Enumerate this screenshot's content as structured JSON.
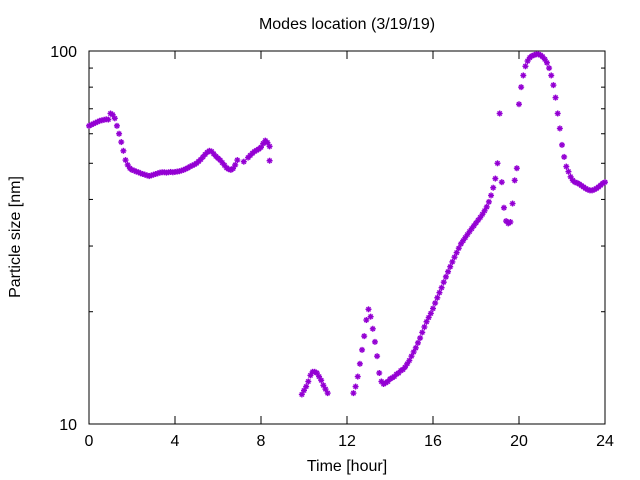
{
  "chart_data": {
    "type": "scatter",
    "title": "Modes location (3/19/19)",
    "xlabel": "Time [hour]",
    "ylabel": "Particle size [nm]",
    "xlim": [
      0,
      24
    ],
    "ylim": [
      10,
      100
    ],
    "yscale": "log",
    "xticks": [
      "0",
      "4",
      "8",
      "12",
      "16",
      "20",
      "24"
    ],
    "yticks": [
      "10",
      "100"
    ],
    "marker_color": "#9400d3",
    "marker": "star",
    "series": [
      {
        "values": [
          [
            0.0,
            63.0
          ],
          [
            0.1,
            63.4
          ],
          [
            0.2,
            63.8
          ],
          [
            0.3,
            64.2
          ],
          [
            0.4,
            64.6
          ],
          [
            0.5,
            65.0
          ],
          [
            0.6,
            65.2
          ],
          [
            0.7,
            65.4
          ],
          [
            0.8,
            65.6
          ],
          [
            0.9,
            65.5
          ],
          [
            1.0,
            68.0
          ],
          [
            1.1,
            67.5
          ],
          [
            1.2,
            66.0
          ],
          [
            1.3,
            63.0
          ],
          [
            1.4,
            60.0
          ],
          [
            1.5,
            57.0
          ],
          [
            1.6,
            54.0
          ],
          [
            1.7,
            51.0
          ],
          [
            1.8,
            49.5
          ],
          [
            1.9,
            48.5
          ],
          [
            2.0,
            48.0
          ],
          [
            2.1,
            47.8
          ],
          [
            2.2,
            47.5
          ],
          [
            2.3,
            47.3
          ],
          [
            2.4,
            47.0
          ],
          [
            2.5,
            46.8
          ],
          [
            2.6,
            46.6
          ],
          [
            2.7,
            46.4
          ],
          [
            2.8,
            46.2
          ],
          [
            2.9,
            46.4
          ],
          [
            3.0,
            46.6
          ],
          [
            3.1,
            46.8
          ],
          [
            3.2,
            47.0
          ],
          [
            3.3,
            47.2
          ],
          [
            3.4,
            47.3
          ],
          [
            3.5,
            47.3
          ],
          [
            3.6,
            47.2
          ],
          [
            3.7,
            47.3
          ],
          [
            3.8,
            47.4
          ],
          [
            3.9,
            47.3
          ],
          [
            4.0,
            47.4
          ],
          [
            4.1,
            47.5
          ],
          [
            4.2,
            47.6
          ],
          [
            4.3,
            47.8
          ],
          [
            4.4,
            48.0
          ],
          [
            4.5,
            48.3
          ],
          [
            4.6,
            48.6
          ],
          [
            4.7,
            49.0
          ],
          [
            4.8,
            49.3
          ],
          [
            4.9,
            49.6
          ],
          [
            5.0,
            50.0
          ],
          [
            5.1,
            50.6
          ],
          [
            5.2,
            51.2
          ],
          [
            5.3,
            52.0
          ],
          [
            5.4,
            52.8
          ],
          [
            5.5,
            53.5
          ],
          [
            5.6,
            54.0
          ],
          [
            5.7,
            53.8
          ],
          [
            5.8,
            53.0
          ],
          [
            5.9,
            52.2
          ],
          [
            6.0,
            51.6
          ],
          [
            6.1,
            51.0
          ],
          [
            6.2,
            50.2
          ],
          [
            6.3,
            49.4
          ],
          [
            6.4,
            48.6
          ],
          [
            6.5,
            48.2
          ],
          [
            6.6,
            48.0
          ],
          [
            6.7,
            48.4
          ],
          [
            6.8,
            49.5
          ],
          [
            6.9,
            51.0
          ],
          [
            7.2,
            50.5
          ],
          [
            7.4,
            51.8
          ],
          [
            7.5,
            52.5
          ],
          [
            7.6,
            53.2
          ],
          [
            7.7,
            53.8
          ],
          [
            7.8,
            54.2
          ],
          [
            7.9,
            54.6
          ],
          [
            8.0,
            55.2
          ],
          [
            8.1,
            56.5
          ],
          [
            8.2,
            57.5
          ],
          [
            8.3,
            56.8
          ],
          [
            8.4,
            55.5
          ],
          [
            8.4,
            50.8
          ],
          [
            9.9,
            12.0
          ],
          [
            10.0,
            12.3
          ],
          [
            10.1,
            12.6
          ],
          [
            10.2,
            13.0
          ],
          [
            10.3,
            13.5
          ],
          [
            10.4,
            13.8
          ],
          [
            10.5,
            13.8
          ],
          [
            10.6,
            13.7
          ],
          [
            10.7,
            13.4
          ],
          [
            10.8,
            13.1
          ],
          [
            10.9,
            12.7
          ],
          [
            11.0,
            12.4
          ],
          [
            11.1,
            12.1
          ],
          [
            12.3,
            12.1
          ],
          [
            12.4,
            12.6
          ],
          [
            12.5,
            13.4
          ],
          [
            12.6,
            14.5
          ],
          [
            12.7,
            15.8
          ],
          [
            12.8,
            17.2
          ],
          [
            12.9,
            19.0
          ],
          [
            13.0,
            20.3
          ],
          [
            13.1,
            19.4
          ],
          [
            13.2,
            18.0
          ],
          [
            13.3,
            16.6
          ],
          [
            13.4,
            15.2
          ],
          [
            13.5,
            13.7
          ],
          [
            13.6,
            13.0
          ],
          [
            13.7,
            12.8
          ],
          [
            13.8,
            12.9
          ],
          [
            13.9,
            13.0
          ],
          [
            14.0,
            13.2
          ],
          [
            14.1,
            13.3
          ],
          [
            14.2,
            13.4
          ],
          [
            14.3,
            13.6
          ],
          [
            14.4,
            13.7
          ],
          [
            14.5,
            13.9
          ],
          [
            14.6,
            14.0
          ],
          [
            14.7,
            14.2
          ],
          [
            14.8,
            14.5
          ],
          [
            14.9,
            14.8
          ],
          [
            15.0,
            15.2
          ],
          [
            15.1,
            15.6
          ],
          [
            15.2,
            16.0
          ],
          [
            15.3,
            16.5
          ],
          [
            15.4,
            17.0
          ],
          [
            15.5,
            17.6
          ],
          [
            15.6,
            18.2
          ],
          [
            15.7,
            18.8
          ],
          [
            15.8,
            19.3
          ],
          [
            15.9,
            19.8
          ],
          [
            16.0,
            20.4
          ],
          [
            16.1,
            21.1
          ],
          [
            16.2,
            21.8
          ],
          [
            16.3,
            22.5
          ],
          [
            16.4,
            23.2
          ],
          [
            16.5,
            24.0
          ],
          [
            16.6,
            24.8
          ],
          [
            16.7,
            25.6
          ],
          [
            16.8,
            26.4
          ],
          [
            16.9,
            27.2
          ],
          [
            17.0,
            28.0
          ],
          [
            17.1,
            28.8
          ],
          [
            17.2,
            29.6
          ],
          [
            17.3,
            30.4
          ],
          [
            17.4,
            31.0
          ],
          [
            17.5,
            31.6
          ],
          [
            17.6,
            32.2
          ],
          [
            17.7,
            32.8
          ],
          [
            17.8,
            33.4
          ],
          [
            17.9,
            34.0
          ],
          [
            18.0,
            34.6
          ],
          [
            18.1,
            35.2
          ],
          [
            18.2,
            35.8
          ],
          [
            18.3,
            36.5
          ],
          [
            18.4,
            37.3
          ],
          [
            18.5,
            38.2
          ],
          [
            18.6,
            39.4
          ],
          [
            18.7,
            41.0
          ],
          [
            18.8,
            43.0
          ],
          [
            18.9,
            45.5
          ],
          [
            19.0,
            50.0
          ],
          [
            19.1,
            68.0
          ],
          [
            19.2,
            44.5
          ],
          [
            19.3,
            38.0
          ],
          [
            19.4,
            35.0
          ],
          [
            19.5,
            34.5
          ],
          [
            19.6,
            34.8
          ],
          [
            19.7,
            39.0
          ],
          [
            19.8,
            45.0
          ],
          [
            19.9,
            48.5
          ],
          [
            20.0,
            72.0
          ],
          [
            20.1,
            80.0
          ],
          [
            20.2,
            86.0
          ],
          [
            20.3,
            91.0
          ],
          [
            20.4,
            94.0
          ],
          [
            20.5,
            96.0
          ],
          [
            20.6,
            97.0
          ],
          [
            20.7,
            97.5
          ],
          [
            20.8,
            98.0
          ],
          [
            20.9,
            98.0
          ],
          [
            21.0,
            97.5
          ],
          [
            21.1,
            96.5
          ],
          [
            21.2,
            95.0
          ],
          [
            21.3,
            93.0
          ],
          [
            21.4,
            90.0
          ],
          [
            21.5,
            86.0
          ],
          [
            21.6,
            81.0
          ],
          [
            21.7,
            75.0
          ],
          [
            21.8,
            68.0
          ],
          [
            21.9,
            62.0
          ],
          [
            22.0,
            56.0
          ],
          [
            22.1,
            52.0
          ],
          [
            22.2,
            49.0
          ],
          [
            22.3,
            47.5
          ],
          [
            22.4,
            46.0
          ],
          [
            22.5,
            45.0
          ],
          [
            22.6,
            44.5
          ],
          [
            22.7,
            44.3
          ],
          [
            22.8,
            44.0
          ],
          [
            22.9,
            43.6
          ],
          [
            23.0,
            43.2
          ],
          [
            23.1,
            42.8
          ],
          [
            23.2,
            42.5
          ],
          [
            23.3,
            42.3
          ],
          [
            23.4,
            42.3
          ],
          [
            23.5,
            42.5
          ],
          [
            23.6,
            42.8
          ],
          [
            23.7,
            43.2
          ],
          [
            23.8,
            43.7
          ],
          [
            23.9,
            44.2
          ],
          [
            24.0,
            44.5
          ]
        ]
      }
    ]
  }
}
